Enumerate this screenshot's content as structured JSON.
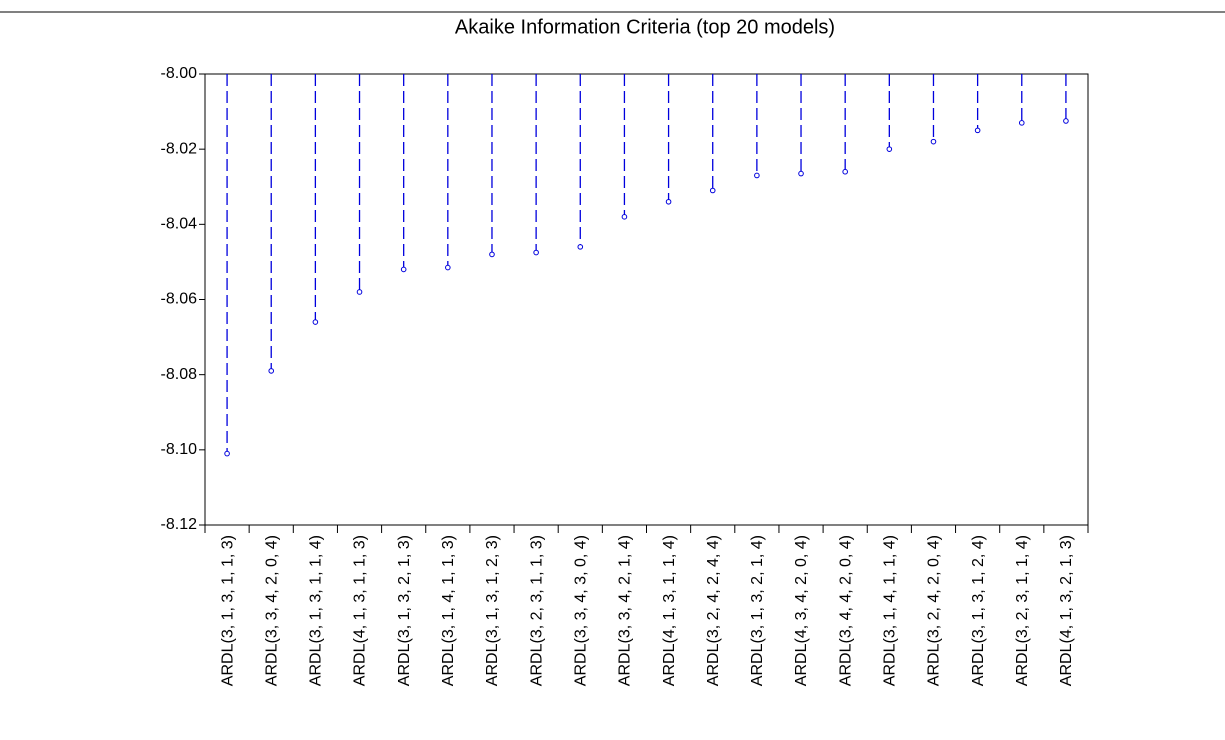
{
  "chart_data": {
    "type": "stem",
    "title": "Akaike Information Criteria (top 20 models)",
    "categories": [
      "ARDL(3, 1, 3, 1, 1, 3)",
      "ARDL(3, 3, 4, 2, 0, 4)",
      "ARDL(3, 1, 3, 1, 1, 4)",
      "ARDL(4, 1, 3, 1, 1, 3)",
      "ARDL(3, 1, 3, 2, 1, 3)",
      "ARDL(3, 1, 4, 1, 1, 3)",
      "ARDL(3, 1, 3, 1, 2, 3)",
      "ARDL(3, 2, 3, 1, 1, 3)",
      "ARDL(3, 3, 4, 3, 0, 4)",
      "ARDL(3, 3, 4, 2, 1, 4)",
      "ARDL(4, 1, 3, 1, 1, 4)",
      "ARDL(3, 2, 4, 2, 4, 4)",
      "ARDL(3, 1, 3, 2, 1, 4)",
      "ARDL(4, 3, 4, 2, 0, 4)",
      "ARDL(3, 4, 4, 2, 0, 4)",
      "ARDL(3, 1, 4, 1, 1, 4)",
      "ARDL(3, 2, 4, 2, 0, 4)",
      "ARDL(3, 1, 3, 1, 2, 4)",
      "ARDL(3, 2, 3, 1, 1, 4)",
      "ARDL(4, 1, 3, 2, 1, 3)"
    ],
    "values": [
      -8.101,
      -8.079,
      -8.066,
      -8.058,
      -8.052,
      -8.0515,
      -8.048,
      -8.0475,
      -8.046,
      -8.038,
      -8.034,
      -8.031,
      -8.027,
      -8.0265,
      -8.026,
      -8.02,
      -8.018,
      -8.015,
      -8.013,
      -8.0125
    ],
    "color": "#0000dd",
    "ylim": [
      -8.12,
      -8.0
    ],
    "yticks": [
      -8.12,
      {
        "value": -8.1,
        "label": "-8.10"
      },
      -8.08,
      -8.06,
      -8.04,
      -8.02,
      {
        "value": -8.0,
        "label": "-8.00"
      }
    ]
  }
}
